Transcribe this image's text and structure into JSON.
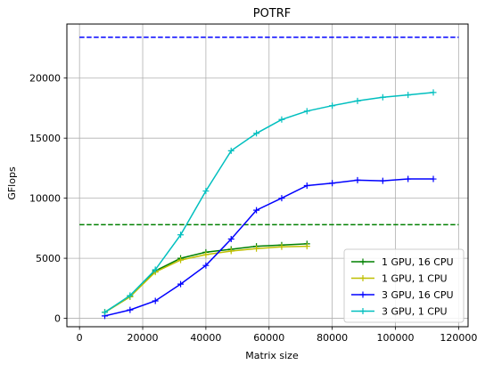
{
  "chart_data": {
    "type": "line",
    "title": "POTRF",
    "xlabel": "Matrix size",
    "ylabel": "GFlops",
    "xlim": [
      -4000,
      123000
    ],
    "ylim": [
      -700,
      24500
    ],
    "xticks": [
      0,
      20000,
      40000,
      60000,
      80000,
      100000,
      120000
    ],
    "yticks": [
      0,
      5000,
      10000,
      15000,
      20000
    ],
    "grid": true,
    "legend_position": "lower-right",
    "series": [
      {
        "name": "1 GPU, 16 CPU",
        "color": "#008000",
        "x": [
          8000,
          16000,
          24000,
          32000,
          40000,
          48000,
          56000,
          64000,
          72000
        ],
        "y": [
          500,
          1800,
          3950,
          5000,
          5500,
          5750,
          6000,
          6100,
          6200
        ]
      },
      {
        "name": "1 GPU, 1 CPU",
        "color": "#bfbf00",
        "x": [
          8000,
          16000,
          24000,
          32000,
          40000,
          48000,
          56000,
          64000,
          72000
        ],
        "y": [
          500,
          1800,
          3850,
          4850,
          5300,
          5600,
          5800,
          5950,
          6000
        ]
      },
      {
        "name": "3 GPU, 16 CPU",
        "color": "#0000ff",
        "x": [
          8000,
          16000,
          24000,
          32000,
          40000,
          48000,
          56000,
          64000,
          72000,
          80000,
          88000,
          96000,
          104000,
          112000
        ],
        "y": [
          200,
          700,
          1450,
          2850,
          4400,
          6600,
          9000,
          10000,
          11050,
          11250,
          11500,
          11450,
          11600,
          11600
        ]
      },
      {
        "name": "3 GPU, 1 CPU",
        "color": "#00bfbf",
        "x": [
          8000,
          16000,
          24000,
          32000,
          40000,
          48000,
          56000,
          64000,
          72000,
          80000,
          88000,
          96000,
          104000,
          112000
        ],
        "y": [
          500,
          1900,
          4050,
          6950,
          10600,
          13950,
          15400,
          16550,
          17250,
          17700,
          18100,
          18400,
          18600,
          18800
        ]
      }
    ],
    "reference_lines": [
      {
        "color": "#0000ff",
        "y": 23400,
        "style": "dashed"
      },
      {
        "color": "#008000",
        "y": 7800,
        "style": "dashed"
      }
    ]
  }
}
